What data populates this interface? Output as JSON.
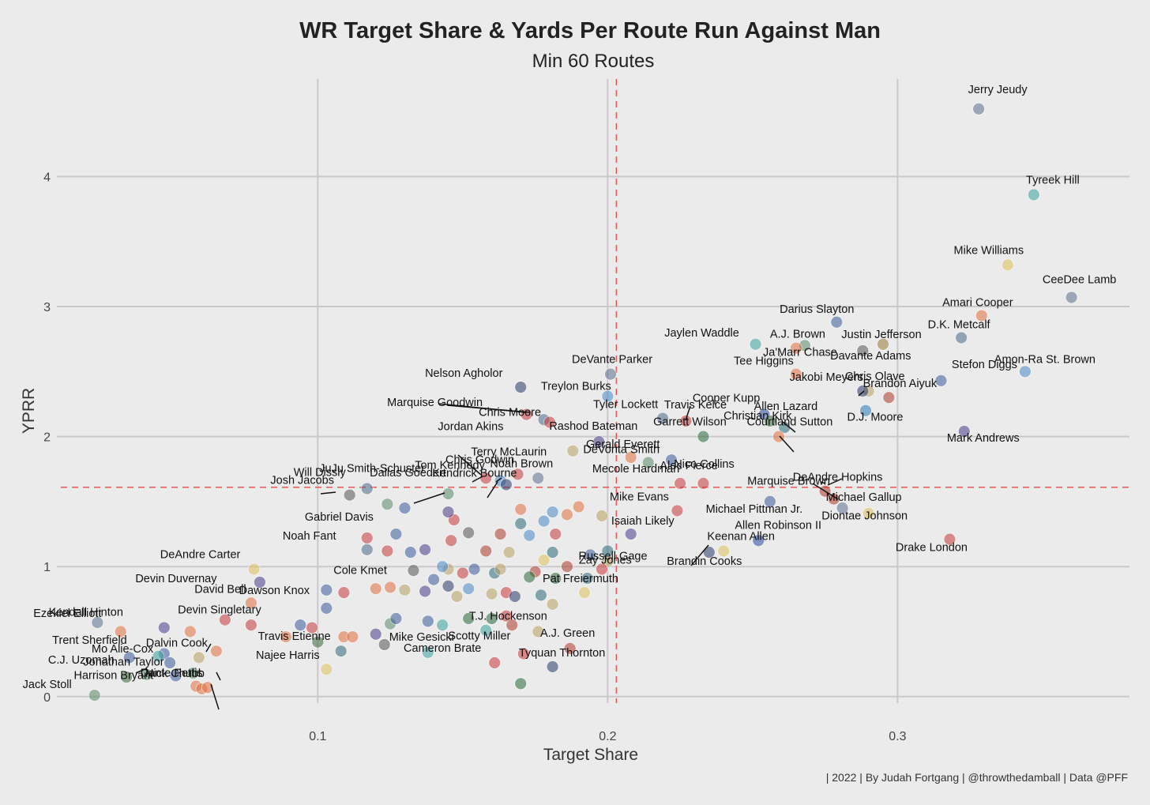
{
  "chart_data": {
    "type": "scatter",
    "title": "WR Target Share & Yards Per Route Run Against Man",
    "subtitle": "Min 60 Routes",
    "xlabel": "Target Share",
    "ylabel": "YPRR",
    "caption": "| 2022 | By Judah Fortgang | @throwthedamball | Data @PFF",
    "xlim": [
      0.01,
      0.38
    ],
    "ylim": [
      -0.05,
      4.75
    ],
    "x_ticks": [
      {
        "v": 0.1,
        "label": "0.1"
      },
      {
        "v": 0.2,
        "label": "0.2"
      },
      {
        "v": 0.3,
        "label": "0.3"
      }
    ],
    "y_ticks": [
      {
        "v": 0,
        "label": "0"
      },
      {
        "v": 1,
        "label": "1"
      },
      {
        "v": 2,
        "label": "2"
      },
      {
        "v": 3,
        "label": "3"
      },
      {
        "v": 4,
        "label": "4"
      }
    ],
    "x_reference": 0.203,
    "y_reference": 1.61,
    "grid": true,
    "legend": "none",
    "labeled_points": [
      {
        "name": "Jerry Jeudy",
        "x": 0.328,
        "y": 4.52,
        "c": "#5a6f8f"
      },
      {
        "name": "Tyreek Hill",
        "x": 0.347,
        "y": 3.86,
        "c": "#3aa3a0"
      },
      {
        "name": "Mike Williams",
        "x": 0.338,
        "y": 3.32,
        "c": "#e0c35a"
      },
      {
        "name": "CeeDee Lamb",
        "x": 0.36,
        "y": 3.07,
        "c": "#5a6f8f"
      },
      {
        "name": "Amari Cooper",
        "x": 0.329,
        "y": 2.93,
        "c": "#e07040"
      },
      {
        "name": "D.K. Metcalf",
        "x": 0.322,
        "y": 2.76,
        "c": "#4a6a8a"
      },
      {
        "name": "Darius Slayton",
        "x": 0.279,
        "y": 2.88,
        "c": "#3a5a9a"
      },
      {
        "name": "A.J. Brown",
        "x": 0.268,
        "y": 2.7,
        "c": "#5a8a6a"
      },
      {
        "name": "Jaylen Waddle",
        "x": 0.251,
        "y": 2.71,
        "c": "#3aa3a0"
      },
      {
        "name": "Ja'Marr Chase",
        "x": 0.265,
        "y": 2.68,
        "c": "#e07040"
      },
      {
        "name": "Justin Jefferson",
        "x": 0.295,
        "y": 2.71,
        "c": "#9a7a3a"
      },
      {
        "name": "Davante Adams",
        "x": 0.288,
        "y": 2.66,
        "c": "#555555"
      },
      {
        "name": "Amon-Ra St. Brown",
        "x": 0.344,
        "y": 2.5,
        "c": "#4a8ac8"
      },
      {
        "name": "Tee Higgins",
        "x": 0.265,
        "y": 2.48,
        "c": "#e07040"
      },
      {
        "name": "Chris Olave",
        "x": 0.29,
        "y": 2.35,
        "c": "#b8a060"
      },
      {
        "name": "Stefon Diggs",
        "x": 0.315,
        "y": 2.43,
        "c": "#3a5a9a"
      },
      {
        "name": "Brandon Aiyuk",
        "x": 0.297,
        "y": 2.3,
        "c": "#b03a2a"
      },
      {
        "name": "D.J. Moore",
        "x": 0.289,
        "y": 2.2,
        "c": "#2a7ab8"
      },
      {
        "name": "Jakobi Meyers",
        "x": 0.288,
        "y": 2.35,
        "c": "#2a3a6a"
      },
      {
        "name": "Cooper Kupp",
        "x": 0.254,
        "y": 2.17,
        "c": "#2a4aa0"
      },
      {
        "name": "Travis Kelce",
        "x": 0.227,
        "y": 2.12,
        "c": "#c83a3a"
      },
      {
        "name": "Garrett Wilson",
        "x": 0.233,
        "y": 2.0,
        "c": "#2a6a3a"
      },
      {
        "name": "Tyler Lockett",
        "x": 0.219,
        "y": 2.14,
        "c": "#4a6a8a"
      },
      {
        "name": "Allen Lazard",
        "x": 0.256,
        "y": 2.12,
        "c": "#3a6a3a"
      },
      {
        "name": "Christian Kirk",
        "x": 0.261,
        "y": 2.07,
        "c": "#2a6a7a"
      },
      {
        "name": "Courtland Sutton",
        "x": 0.259,
        "y": 2.0,
        "c": "#e07040"
      },
      {
        "name": "Mark Andrews",
        "x": 0.323,
        "y": 2.04,
        "c": "#4a3a8a"
      },
      {
        "name": "DeVante Parker",
        "x": 0.201,
        "y": 2.48,
        "c": "#5a6f8f"
      },
      {
        "name": "Treylon Burks",
        "x": 0.2,
        "y": 2.31,
        "c": "#4a8ac8"
      },
      {
        "name": "Nelson Agholor",
        "x": 0.17,
        "y": 2.38,
        "c": "#2a3a6a"
      },
      {
        "name": "Chris Moore",
        "x": 0.172,
        "y": 2.17,
        "c": "#c83a3a"
      },
      {
        "name": "Marquise Goodwin",
        "x": 0.178,
        "y": 2.13,
        "c": "#4a6a8a"
      },
      {
        "name": "Jordan Akins",
        "x": 0.18,
        "y": 2.11,
        "c": "#c83a3a"
      },
      {
        "name": "Rashod Bateman",
        "x": 0.197,
        "y": 1.96,
        "c": "#4a3a8a"
      },
      {
        "name": "Gerald Everett",
        "x": 0.208,
        "y": 1.84,
        "c": "#e07040"
      },
      {
        "name": "Terry McLaurin",
        "x": 0.188,
        "y": 1.89,
        "c": "#b8a060"
      },
      {
        "name": "Alec Pierce",
        "x": 0.222,
        "y": 1.82,
        "c": "#3a5a9a"
      },
      {
        "name": "DeVonta Smith",
        "x": 0.214,
        "y": 1.8,
        "c": "#5a8a6a"
      },
      {
        "name": "JuJu Smith-Schuster",
        "x": 0.158,
        "y": 1.68,
        "c": "#c83a3a"
      },
      {
        "name": "Chris Godwin",
        "x": 0.169,
        "y": 1.71,
        "c": "#c83a3a"
      },
      {
        "name": "Tom Kennedy",
        "x": 0.163,
        "y": 1.66,
        "c": "#4a8ac8"
      },
      {
        "name": "Noah Brown",
        "x": 0.176,
        "y": 1.68,
        "c": "#5a6f8f"
      },
      {
        "name": "Mecole Hardman",
        "x": 0.225,
        "y": 1.64,
        "c": "#c83a3a"
      },
      {
        "name": "Nico Collins",
        "x": 0.233,
        "y": 1.64,
        "c": "#c83a3a"
      },
      {
        "name": "Marquise Brown",
        "x": 0.278,
        "y": 1.52,
        "c": "#b03a2a"
      },
      {
        "name": "DeAndre Hopkins",
        "x": 0.275,
        "y": 1.58,
        "c": "#b03a2a"
      },
      {
        "name": "Michael Gallup",
        "x": 0.281,
        "y": 1.45,
        "c": "#5a6f8f"
      },
      {
        "name": "Diontae Johnson",
        "x": 0.29,
        "y": 1.41,
        "c": "#e0c35a"
      },
      {
        "name": "Michael Pittman Jr.",
        "x": 0.256,
        "y": 1.5,
        "c": "#3a5a9a"
      },
      {
        "name": "Drake London",
        "x": 0.318,
        "y": 1.21,
        "c": "#c83a3a"
      },
      {
        "name": "Allen Robinson II",
        "x": 0.252,
        "y": 1.2,
        "c": "#2a4aa0"
      },
      {
        "name": "Keenan Allen",
        "x": 0.24,
        "y": 1.12,
        "c": "#e0c35a"
      },
      {
        "name": "Brandin Cooks",
        "x": 0.235,
        "y": 1.11,
        "c": "#2a3a6a"
      },
      {
        "name": "Mike Evans",
        "x": 0.224,
        "y": 1.43,
        "c": "#c83a3a"
      },
      {
        "name": "Isaiah Likely",
        "x": 0.208,
        "y": 1.25,
        "c": "#4a3a8a"
      },
      {
        "name": "Zay Jones",
        "x": 0.2,
        "y": 1.12,
        "c": "#2a6a7a"
      },
      {
        "name": "Kendrick Bourne",
        "x": 0.165,
        "y": 1.63,
        "c": "#2a3a6a"
      },
      {
        "name": "Dallas Goedert",
        "x": 0.145,
        "y": 1.56,
        "c": "#5a8a6a"
      },
      {
        "name": "Will Dissly",
        "x": 0.117,
        "y": 1.6,
        "c": "#4a6a8a"
      },
      {
        "name": "Josh Jacobs",
        "x": 0.111,
        "y": 1.55,
        "c": "#555555"
      },
      {
        "name": "Gabriel Davis",
        "x": 0.127,
        "y": 1.25,
        "c": "#3a5a9a"
      },
      {
        "name": "Noah Fant",
        "x": 0.117,
        "y": 1.13,
        "c": "#4a6a8a"
      },
      {
        "name": "DeAndre Carter",
        "x": 0.078,
        "y": 0.98,
        "c": "#e0c35a"
      },
      {
        "name": "Devin Duvernay",
        "x": 0.08,
        "y": 0.88,
        "c": "#4a3a8a"
      },
      {
        "name": "Cole Kmet",
        "x": 0.125,
        "y": 0.84,
        "c": "#e07040"
      },
      {
        "name": "David Bell",
        "x": 0.077,
        "y": 0.72,
        "c": "#e07040"
      },
      {
        "name": "Devin Singletary",
        "x": 0.077,
        "y": 0.55,
        "c": "#c83a3a"
      },
      {
        "name": "Dawson Knox",
        "x": 0.103,
        "y": 0.68,
        "c": "#3a5a9a"
      },
      {
        "name": "Ezekiel Elliott",
        "x": 0.024,
        "y": 0.57,
        "c": "#5a6f8f"
      },
      {
        "name": "Kendall Hinton",
        "x": 0.032,
        "y": 0.5,
        "c": "#e07040"
      },
      {
        "name": "Dalvin Cook",
        "x": 0.059,
        "y": 0.3,
        "c": "#b8a060"
      },
      {
        "name": "Trent Sherfield",
        "x": 0.045,
        "y": 0.31,
        "c": "#3aa3a0"
      },
      {
        "name": "Travis Etienne",
        "x": 0.108,
        "y": 0.35,
        "c": "#2a6a7a"
      },
      {
        "name": "Mo Alie-Cox",
        "x": 0.049,
        "y": 0.26,
        "c": "#3a5a9a"
      },
      {
        "name": "Jonathan Taylor",
        "x": 0.051,
        "y": 0.16,
        "c": "#3a5a9a"
      },
      {
        "name": "Mike Gesicki",
        "x": 0.138,
        "y": 0.34,
        "c": "#3aa3a0"
      },
      {
        "name": "Najee Harris",
        "x": 0.103,
        "y": 0.21,
        "c": "#e0c35a"
      },
      {
        "name": "C.J. Uzomah",
        "x": 0.041,
        "y": 0.17,
        "c": "#5a8a6a"
      },
      {
        "name": "Dante Pettis",
        "x": 0.058,
        "y": 0.08,
        "c": "#e07040"
      },
      {
        "name": "Nick Chubb",
        "x": 0.06,
        "y": 0.06,
        "c": "#e07040"
      },
      {
        "name": "Jack Stoll",
        "x": 0.023,
        "y": 0.01,
        "c": "#5a8a6a"
      },
      {
        "name": "Harrison Bryant",
        "x": 0.062,
        "y": 0.07,
        "c": "#e07040"
      },
      {
        "name": "Cameron Brate",
        "x": 0.161,
        "y": 0.26,
        "c": "#c83a3a"
      },
      {
        "name": "Scotty Miller",
        "x": 0.171,
        "y": 0.33,
        "c": "#c83a3a"
      },
      {
        "name": "T.J. Hockenson",
        "x": 0.176,
        "y": 0.5,
        "c": "#b8a060"
      },
      {
        "name": "A.J. Green",
        "x": 0.187,
        "y": 0.37,
        "c": "#b03a2a"
      },
      {
        "name": "Tyquan Thornton",
        "x": 0.181,
        "y": 0.23,
        "c": "#2a3a6a"
      },
      {
        "name": "Russell Gage",
        "x": 0.198,
        "y": 0.98,
        "c": "#c83a3a"
      },
      {
        "name": "Pat Freiermuth",
        "x": 0.192,
        "y": 0.8,
        "c": "#e0c35a"
      }
    ],
    "unlabeled_points": [
      {
        "x": 0.068,
        "y": 0.59,
        "c": "#c83a3a"
      },
      {
        "x": 0.047,
        "y": 0.53,
        "c": "#4a3a8a"
      },
      {
        "x": 0.056,
        "y": 0.5,
        "c": "#e07040"
      },
      {
        "x": 0.065,
        "y": 0.35,
        "c": "#e07040"
      },
      {
        "x": 0.047,
        "y": 0.33,
        "c": "#3a5a9a"
      },
      {
        "x": 0.035,
        "y": 0.3,
        "c": "#3a5a9a"
      },
      {
        "x": 0.057,
        "y": 0.18,
        "c": "#5a8a6a"
      },
      {
        "x": 0.034,
        "y": 0.15,
        "c": "#3a6a3a"
      },
      {
        "x": 0.089,
        "y": 0.46,
        "c": "#e07040"
      },
      {
        "x": 0.094,
        "y": 0.55,
        "c": "#3a5a9a"
      },
      {
        "x": 0.098,
        "y": 0.53,
        "c": "#c83a3a"
      },
      {
        "x": 0.1,
        "y": 0.42,
        "c": "#3a6a3a"
      },
      {
        "x": 0.109,
        "y": 0.46,
        "c": "#e07040"
      },
      {
        "x": 0.112,
        "y": 0.46,
        "c": "#e07040"
      },
      {
        "x": 0.12,
        "y": 0.48,
        "c": "#4a3a8a"
      },
      {
        "x": 0.125,
        "y": 0.56,
        "c": "#5a8a6a"
      },
      {
        "x": 0.123,
        "y": 0.4,
        "c": "#555555"
      },
      {
        "x": 0.127,
        "y": 0.6,
        "c": "#3a5a9a"
      },
      {
        "x": 0.138,
        "y": 0.58,
        "c": "#3a5a9a"
      },
      {
        "x": 0.143,
        "y": 0.55,
        "c": "#3aa3a0"
      },
      {
        "x": 0.152,
        "y": 0.6,
        "c": "#2a6a3a"
      },
      {
        "x": 0.16,
        "y": 0.6,
        "c": "#2a6a3a"
      },
      {
        "x": 0.165,
        "y": 0.62,
        "c": "#c83a3a"
      },
      {
        "x": 0.167,
        "y": 0.55,
        "c": "#b03a2a"
      },
      {
        "x": 0.158,
        "y": 0.51,
        "c": "#3aa3a0"
      },
      {
        "x": 0.103,
        "y": 0.82,
        "c": "#3a5a9a"
      },
      {
        "x": 0.109,
        "y": 0.8,
        "c": "#c83a3a"
      },
      {
        "x": 0.12,
        "y": 0.83,
        "c": "#e07040"
      },
      {
        "x": 0.13,
        "y": 0.82,
        "c": "#b8a060"
      },
      {
        "x": 0.137,
        "y": 0.81,
        "c": "#4a3a8a"
      },
      {
        "x": 0.145,
        "y": 0.85,
        "c": "#2a3a6a"
      },
      {
        "x": 0.148,
        "y": 0.77,
        "c": "#b8a060"
      },
      {
        "x": 0.152,
        "y": 0.83,
        "c": "#4a8ac8"
      },
      {
        "x": 0.16,
        "y": 0.79,
        "c": "#b8a060"
      },
      {
        "x": 0.165,
        "y": 0.8,
        "c": "#c83a3a"
      },
      {
        "x": 0.168,
        "y": 0.77,
        "c": "#2a3a6a"
      },
      {
        "x": 0.177,
        "y": 0.78,
        "c": "#2a6a7a"
      },
      {
        "x": 0.181,
        "y": 0.71,
        "c": "#b8a060"
      },
      {
        "x": 0.133,
        "y": 0.97,
        "c": "#555555"
      },
      {
        "x": 0.14,
        "y": 0.9,
        "c": "#3a5a9a"
      },
      {
        "x": 0.145,
        "y": 0.98,
        "c": "#b8a060"
      },
      {
        "x": 0.15,
        "y": 0.95,
        "c": "#c83a3a"
      },
      {
        "x": 0.154,
        "y": 0.98,
        "c": "#3a5a9a"
      },
      {
        "x": 0.161,
        "y": 0.95,
        "c": "#2a6a7a"
      },
      {
        "x": 0.163,
        "y": 0.98,
        "c": "#b8a060"
      },
      {
        "x": 0.175,
        "y": 0.96,
        "c": "#b03a2a"
      },
      {
        "x": 0.173,
        "y": 0.92,
        "c": "#2a6a3a"
      },
      {
        "x": 0.182,
        "y": 0.91,
        "c": "#2a6a3a"
      },
      {
        "x": 0.193,
        "y": 0.91,
        "c": "#2a6a7a"
      },
      {
        "x": 0.17,
        "y": 0.1,
        "c": "#2a6a3a"
      },
      {
        "x": 0.143,
        "y": 1.0,
        "c": "#4a8ac8"
      },
      {
        "x": 0.158,
        "y": 1.12,
        "c": "#b03a2a"
      },
      {
        "x": 0.166,
        "y": 1.11,
        "c": "#b8a060"
      },
      {
        "x": 0.178,
        "y": 1.05,
        "c": "#e0c35a"
      },
      {
        "x": 0.181,
        "y": 1.11,
        "c": "#2a6a7a"
      },
      {
        "x": 0.186,
        "y": 1.0,
        "c": "#b03a2a"
      },
      {
        "x": 0.194,
        "y": 1.09,
        "c": "#3a5a9a"
      },
      {
        "x": 0.2,
        "y": 1.04,
        "c": "#b8a060"
      },
      {
        "x": 0.117,
        "y": 1.22,
        "c": "#c83a3a"
      },
      {
        "x": 0.124,
        "y": 1.12,
        "c": "#c83a3a"
      },
      {
        "x": 0.132,
        "y": 1.11,
        "c": "#3a5a9a"
      },
      {
        "x": 0.137,
        "y": 1.13,
        "c": "#4a3a8a"
      },
      {
        "x": 0.146,
        "y": 1.2,
        "c": "#c83a3a"
      },
      {
        "x": 0.152,
        "y": 1.26,
        "c": "#555555"
      },
      {
        "x": 0.163,
        "y": 1.25,
        "c": "#b03a2a"
      },
      {
        "x": 0.173,
        "y": 1.24,
        "c": "#4a8ac8"
      },
      {
        "x": 0.182,
        "y": 1.25,
        "c": "#c83a3a"
      },
      {
        "x": 0.147,
        "y": 1.36,
        "c": "#c83a3a"
      },
      {
        "x": 0.145,
        "y": 1.42,
        "c": "#4a3a8a"
      },
      {
        "x": 0.17,
        "y": 1.33,
        "c": "#2a6a7a"
      },
      {
        "x": 0.17,
        "y": 1.44,
        "c": "#e07040"
      },
      {
        "x": 0.178,
        "y": 1.35,
        "c": "#4a8ac8"
      },
      {
        "x": 0.181,
        "y": 1.42,
        "c": "#4a8ac8"
      },
      {
        "x": 0.186,
        "y": 1.4,
        "c": "#e07040"
      },
      {
        "x": 0.19,
        "y": 1.46,
        "c": "#e07040"
      },
      {
        "x": 0.198,
        "y": 1.39,
        "c": "#b8a060"
      },
      {
        "x": 0.124,
        "y": 1.48,
        "c": "#5a8a6a"
      },
      {
        "x": 0.13,
        "y": 1.45,
        "c": "#3a5a9a"
      }
    ]
  }
}
